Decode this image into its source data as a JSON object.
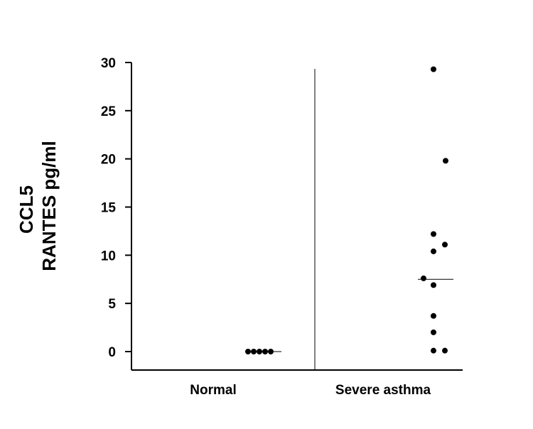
{
  "chart_data": {
    "type": "scatter",
    "ylabel_lines": [
      "CCL5",
      "RANTES pg/ml"
    ],
    "ylim": [
      0,
      30
    ],
    "yticks": [
      0,
      5,
      10,
      15,
      20,
      25,
      30
    ],
    "categories": [
      "Normal",
      "Severe asthma"
    ],
    "series": [
      {
        "category": "Normal",
        "values": [
          0,
          0,
          0,
          0,
          0
        ],
        "median": 0
      },
      {
        "category": "Severe asthma",
        "values": [
          29.3,
          19.8,
          12.2,
          11.1,
          10.4,
          7.6,
          6.9,
          3.7,
          2.0,
          0.1,
          0.1
        ],
        "median": 7.5
      }
    ],
    "colors": {
      "marker": "#000000",
      "axis": "#000000"
    },
    "grid": false,
    "legend": "none"
  }
}
